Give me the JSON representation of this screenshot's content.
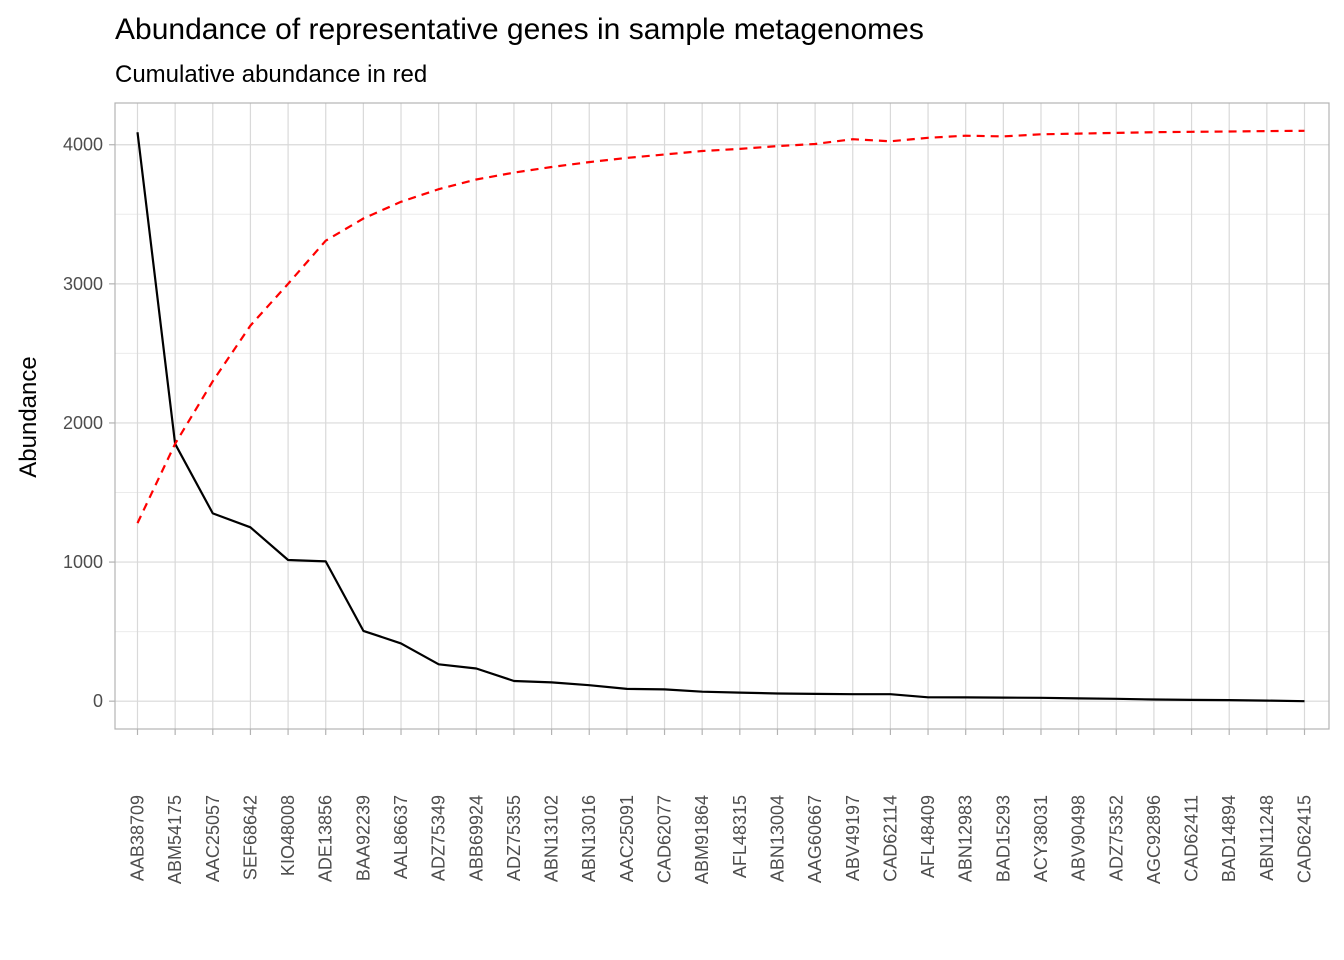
{
  "chart_data": {
    "type": "line",
    "title": "Abundance of representative genes in sample metagenomes",
    "subtitle": "Cumulative abundance in red",
    "xlabel": "",
    "ylabel": "Abundance",
    "ylim": [
      -200,
      4300
    ],
    "yticks": [
      0,
      1000,
      2000,
      3000,
      4000
    ],
    "grid": true,
    "legend": "none",
    "categories": [
      "AAB38709",
      "ABM54175",
      "AAC25057",
      "SEF68642",
      "KIO48008",
      "ADE13856",
      "BAA92239",
      "AAL86637",
      "ADZ75349",
      "ABB69924",
      "ADZ75355",
      "ABN13102",
      "ABN13016",
      "AAC25091",
      "CAD62077",
      "ABM91864",
      "AFL48315",
      "ABN13004",
      "AAG60667",
      "ABV49197",
      "CAD62114",
      "AFL48409",
      "ABN12983",
      "BAD15293",
      "ACY38031",
      "ABV90498",
      "ADZ75352",
      "AGC92896",
      "CAD62411",
      "BAD14894",
      "ABN11248",
      "CAD62415"
    ],
    "series": [
      {
        "color": "#000000",
        "style": "solid",
        "values": [
          4090,
          1850,
          1350,
          1250,
          1015,
          1005,
          505,
          415,
          265,
          235,
          145,
          135,
          115,
          88,
          85,
          68,
          62,
          55,
          52,
          50,
          50,
          28,
          27,
          26,
          24,
          20,
          17,
          12,
          9,
          8,
          4,
          0
        ]
      },
      {
        "color": "#ff0000",
        "style": "dashed",
        "values": [
          1280,
          1850,
          2300,
          2700,
          3000,
          3310,
          3470,
          3590,
          3680,
          3750,
          3800,
          3840,
          3875,
          3905,
          3930,
          3955,
          3970,
          3990,
          4005,
          4040,
          4025,
          4050,
          4065,
          4060,
          4075,
          4080,
          4085,
          4090,
          4093,
          4095,
          4098,
          4100
        ]
      }
    ]
  }
}
